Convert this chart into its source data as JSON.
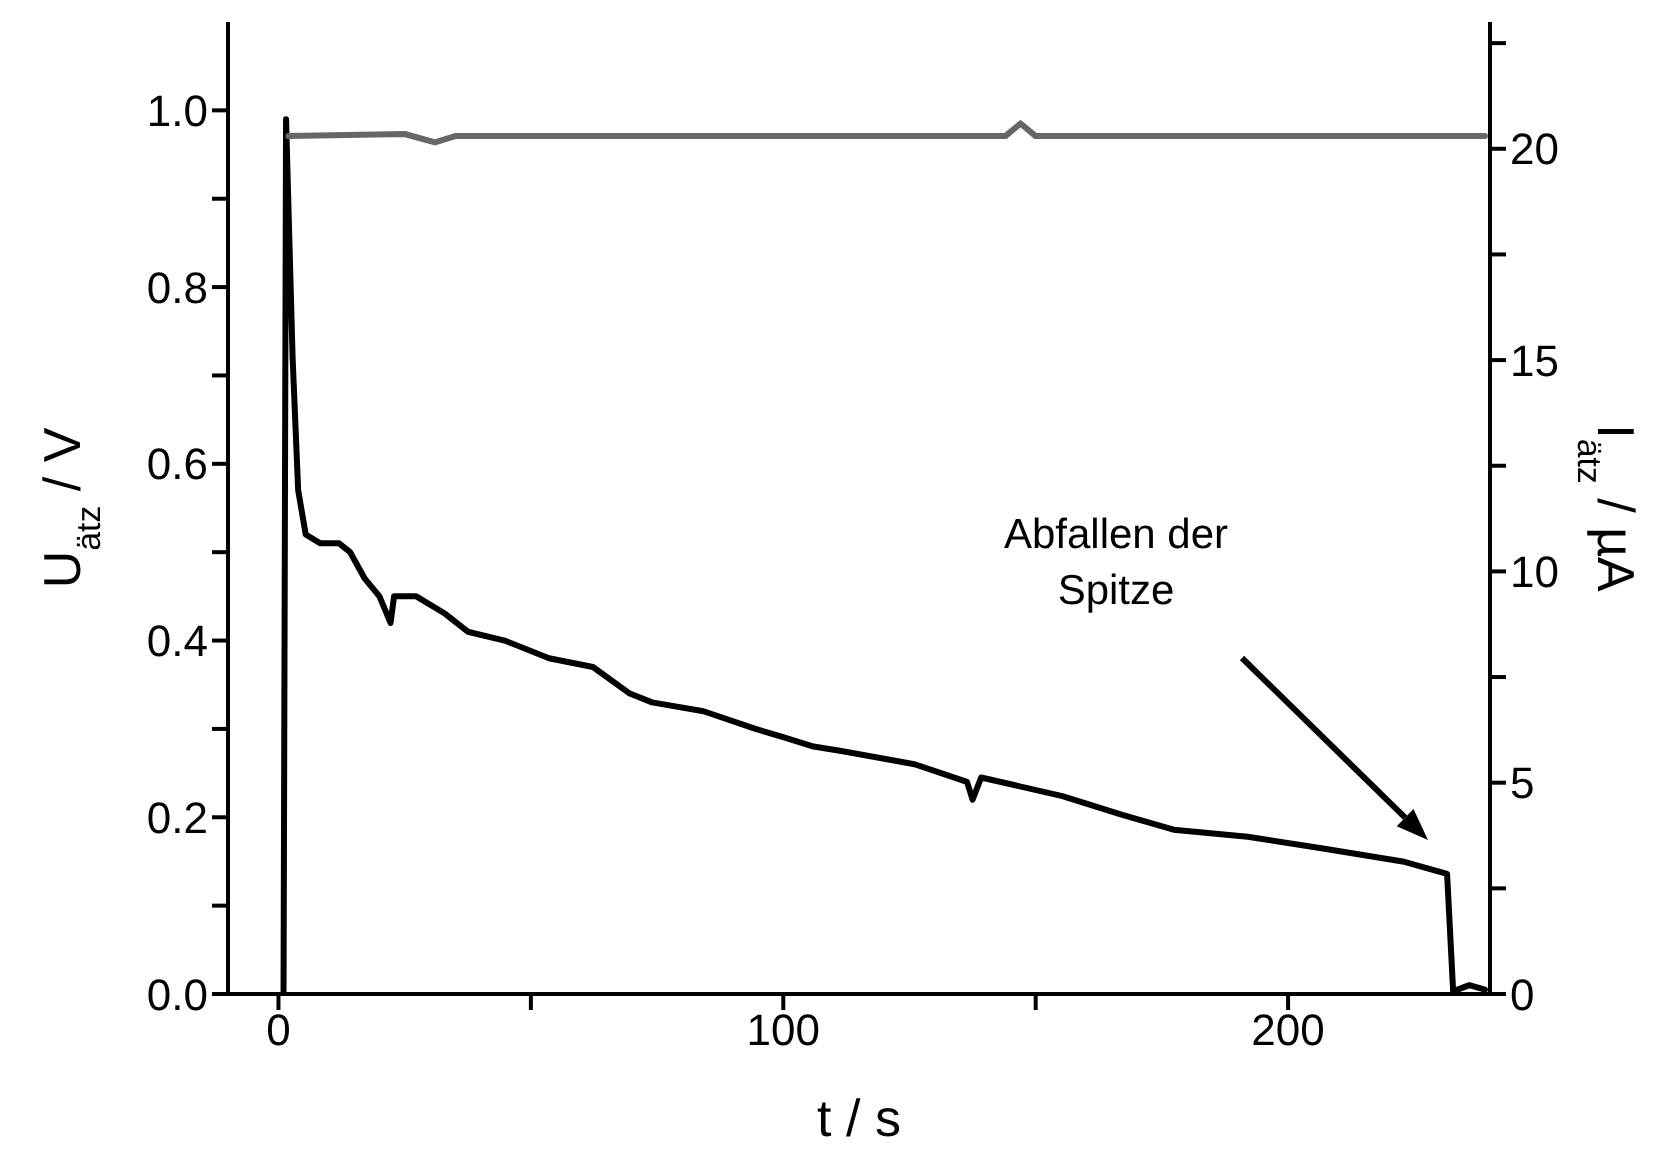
{
  "chart_data": {
    "type": "line",
    "xlabel": "t / s",
    "ylabel": "U$_{ätz}$ / V",
    "y2label": "I$_{ätz}$ / µA",
    "annotations": [
      "Abfallen der\nSpitze"
    ],
    "xlim": [
      -10,
      240
    ],
    "xticks": [
      0,
      {
        "value": 50,
        "label": null
      },
      100,
      {
        "value": 150,
        "label": null
      },
      200
    ],
    "ylim": [
      0,
      1.1
    ],
    "yticks": [
      {
        "value": 0,
        "label": "0.0"
      },
      {
        "value": 0.1,
        "label": null
      },
      {
        "value": 0.2,
        "label": "0.2"
      },
      {
        "value": 0.3,
        "label": null
      },
      {
        "value": 0.4,
        "label": "0.4"
      },
      {
        "value": 0.5,
        "label": null
      },
      {
        "value": 0.6,
        "label": "0.6"
      },
      {
        "value": 0.7,
        "label": null
      },
      {
        "value": 0.8,
        "label": "0.8"
      },
      {
        "value": 0.9,
        "label": null
      },
      {
        "value": 1,
        "label": "1.0"
      }
    ],
    "y2lim": [
      0,
      23
    ],
    "y2ticks": [
      0,
      {
        "value": 2.5,
        "label": null
      },
      5,
      {
        "value": 7.5,
        "label": null
      },
      10,
      {
        "value": 12.5,
        "label": null
      },
      15,
      {
        "value": 17.5,
        "label": null
      },
      20,
      {
        "value": 22.5,
        "label": null
      }
    ],
    "series": [
      {
        "color": "#000000",
        "x": [
          1,
          1.5,
          2.8,
          3.9,
          5.4,
          8.3,
          12,
          14.2,
          17.1,
          20,
          22.2,
          22.9,
          27.3,
          33.1,
          37.5,
          44.8,
          53.6,
          62.3,
          69.6,
          74,
          84.2,
          94.5,
          100.3,
          106,
          111.5,
          126,
          136.4,
          137.5,
          139.2,
          155.3,
          167,
          177.3,
          192,
          206.6,
          222.7,
          231.5,
          232.7,
          235.9,
          239
        ],
        "values": [
          0,
          0.99,
          0.72,
          0.57,
          0.52,
          0.51,
          0.51,
          0.5,
          0.47,
          0.45,
          0.42,
          0.45,
          0.45,
          0.43,
          0.41,
          0.4,
          0.38,
          0.37,
          0.34,
          0.33,
          0.32,
          0.3,
          0.29,
          0.28,
          0.275,
          0.26,
          0.24,
          0.22,
          0.245,
          0.224,
          0.203,
          0.186,
          0.178,
          0.165,
          0.15,
          0.136,
          0.003,
          0.01,
          0.005
        ]
      },
      {
        "color": "#666666",
        "axis": "y2",
        "x": [
          2,
          25,
          31,
          35,
          100,
          144,
          147,
          150,
          239
        ],
        "values": [
          20.3,
          20.35,
          20.15,
          20.3,
          20.3,
          20.3,
          20.6,
          20.3,
          20.3
        ]
      }
    ]
  }
}
